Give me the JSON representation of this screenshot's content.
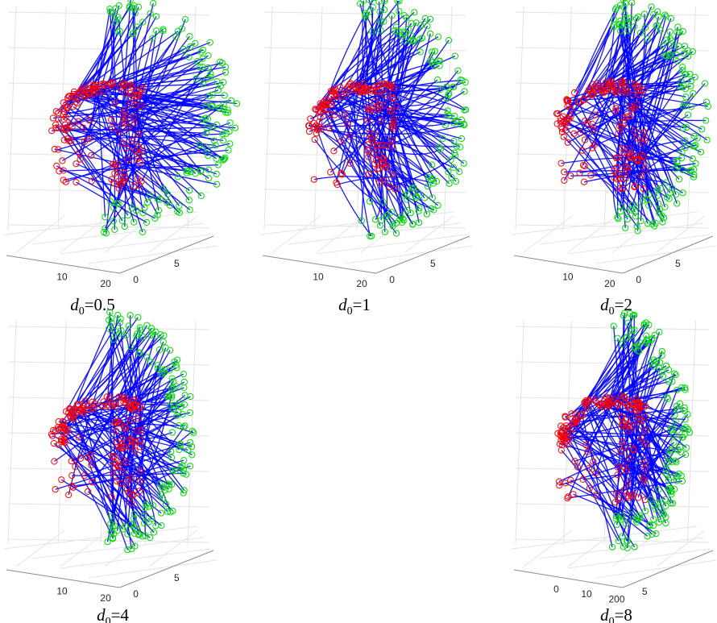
{
  "chart_data": [
    {
      "type": "scatter",
      "subtitle": {
        "symbol": "d",
        "sub": "0",
        "value": "=0.5"
      },
      "xticks": [
        "10",
        "20"
      ],
      "yticks": [
        "0",
        "5"
      ],
      "spread": 0.55,
      "tangle": 0.0,
      "series": [
        "Lines",
        "Origin",
        "Destination"
      ]
    },
    {
      "type": "scatter",
      "subtitle": {
        "symbol": "d",
        "sub": "0",
        "value": "=1"
      },
      "xticks": [
        "10",
        "20"
      ],
      "yticks": [
        "0",
        "5"
      ],
      "spread": 0.35,
      "tangle": 1.0,
      "series": [
        "Lines",
        "Origin",
        "Destination"
      ]
    },
    {
      "type": "scatter",
      "subtitle": {
        "symbol": "d",
        "sub": "0",
        "value": "=2"
      },
      "xticks": [
        "10",
        "20"
      ],
      "yticks": [
        "0",
        "5"
      ],
      "spread": 0.25,
      "tangle": 0.4,
      "series": [
        "Lines",
        "Origin",
        "Destination"
      ]
    },
    {
      "type": "scatter",
      "subtitle": {
        "symbol": "d",
        "sub": "0",
        "value": "=4"
      },
      "xticks": [
        "10",
        "20"
      ],
      "yticks": [
        "0",
        "5"
      ],
      "spread": 0.15,
      "tangle": 0.3,
      "series": [
        "Lines",
        "Origin",
        "Destination"
      ]
    },
    {
      "type": "scatter",
      "subtitle": {
        "symbol": "d",
        "sub": "0",
        "value": "=8"
      },
      "xticks": [
        "0",
        "10",
        "200"
      ],
      "yticks": [
        "5"
      ],
      "spread": 0.08,
      "tangle": 0.0,
      "series": [
        "Lines",
        "Origin",
        "Destination"
      ]
    }
  ],
  "colors": {
    "line": "#0000ff",
    "origin": "#ff0000",
    "destination": "#00dd00",
    "grid": "#e3e3e3",
    "axis": "#8c8c8c"
  }
}
